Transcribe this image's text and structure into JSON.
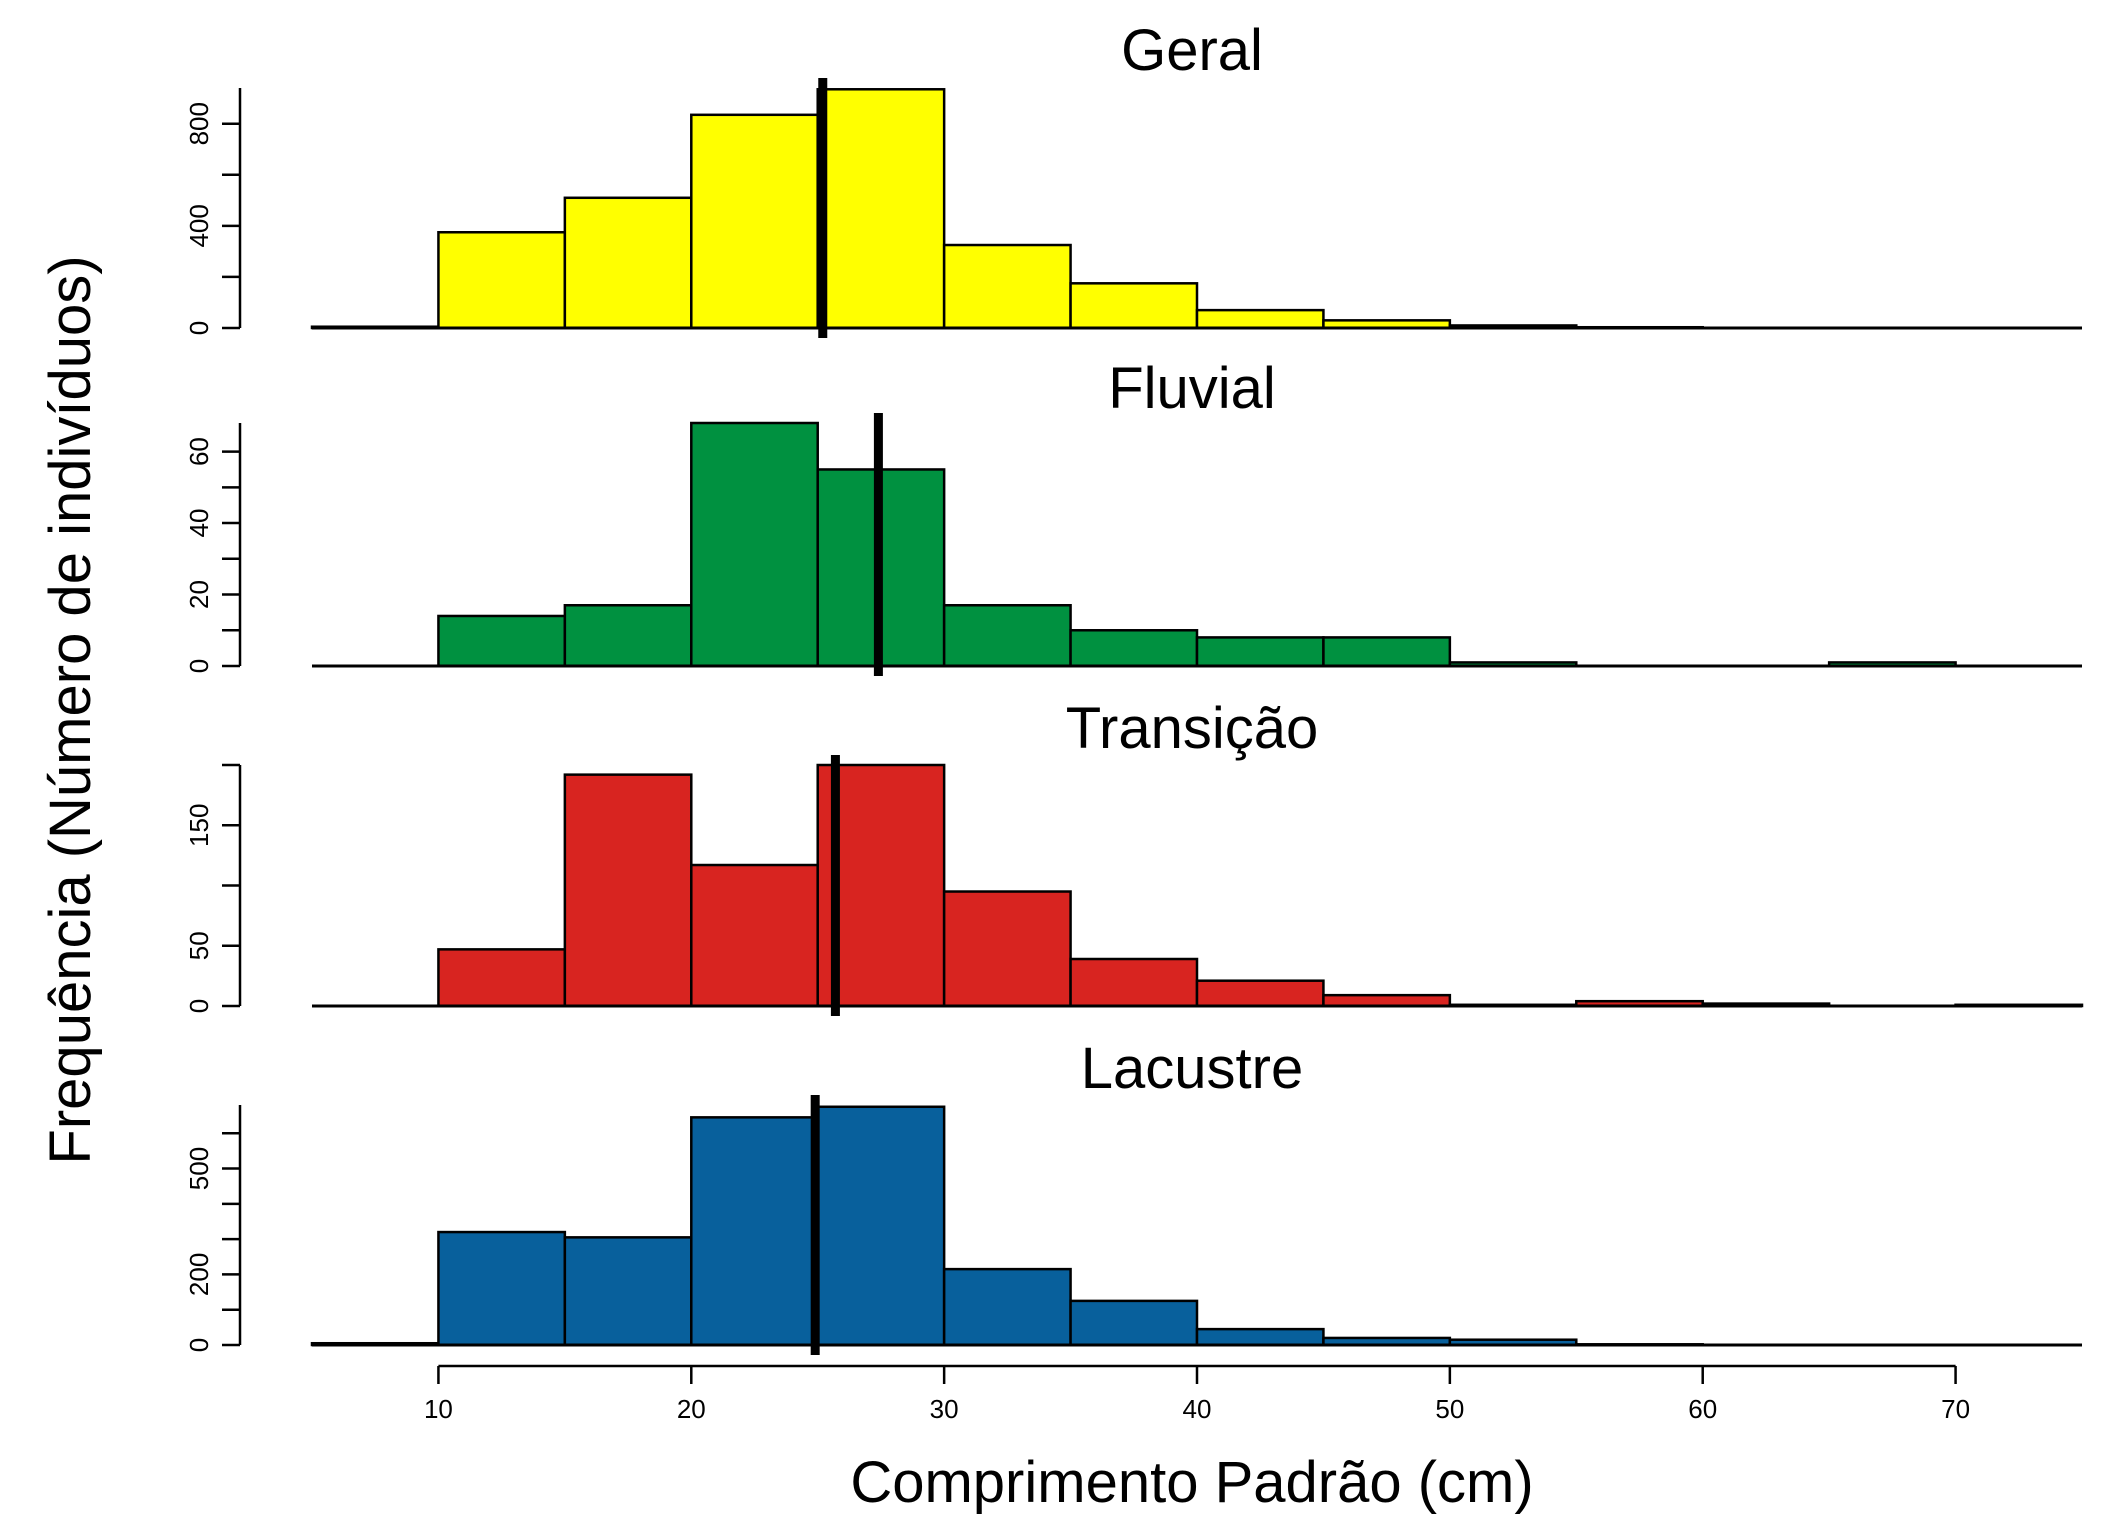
{
  "chart_data": {
    "type": "histogram",
    "xlabel": "Comprimento Padrão (cm)",
    "ylabel": "Frequência (Número de indivíduos)",
    "xlim": [
      5,
      75
    ],
    "x_ticks": [
      10,
      20,
      30,
      40,
      50,
      60,
      70
    ],
    "x_tick_labels": [
      "10",
      "20",
      "30",
      "40",
      "50",
      "60",
      "70"
    ],
    "bin_edges": [
      5,
      10,
      15,
      20,
      25,
      30,
      35,
      40,
      45,
      50,
      55,
      60,
      65,
      70,
      75
    ],
    "panels": [
      {
        "title": "Geral",
        "color": "#ffff00",
        "ylim": [
          0,
          940
        ],
        "y_ticks": [
          0,
          400,
          800
        ],
        "y_tick_labels": [
          "0",
          "400",
          "800"
        ],
        "counts": [
          5,
          375,
          510,
          835,
          935,
          325,
          175,
          70,
          30,
          10,
          3,
          0,
          0,
          0
        ],
        "mean_line": 25.2
      },
      {
        "title": "Fluvial",
        "color": "#009140",
        "ylim": [
          0,
          68
        ],
        "y_ticks": [
          0,
          20,
          40,
          60
        ],
        "y_tick_labels": [
          "0",
          "20",
          "40",
          "60"
        ],
        "counts": [
          0,
          14,
          17,
          68,
          55,
          17,
          10,
          8,
          8,
          1,
          0,
          0,
          1,
          0
        ],
        "mean_line": 27.4
      },
      {
        "title": "Transição",
        "color": "#d82420",
        "ylim": [
          0,
          200
        ],
        "y_ticks": [
          0,
          50,
          150
        ],
        "y_tick_labels": [
          "0",
          "50",
          "150"
        ],
        "counts": [
          0,
          47,
          192,
          117,
          200,
          95,
          39,
          21,
          9,
          1,
          4,
          2,
          0,
          1
        ],
        "mean_line": 25.7
      },
      {
        "title": "Lacustre",
        "color": "#08609c",
        "ylim": [
          0,
          680
        ],
        "y_ticks": [
          0,
          200,
          500
        ],
        "y_tick_labels": [
          "0",
          "200",
          "500"
        ],
        "counts": [
          5,
          320,
          305,
          645,
          675,
          215,
          125,
          45,
          20,
          15,
          2,
          0,
          0,
          0
        ],
        "mean_line": 24.9
      }
    ]
  }
}
